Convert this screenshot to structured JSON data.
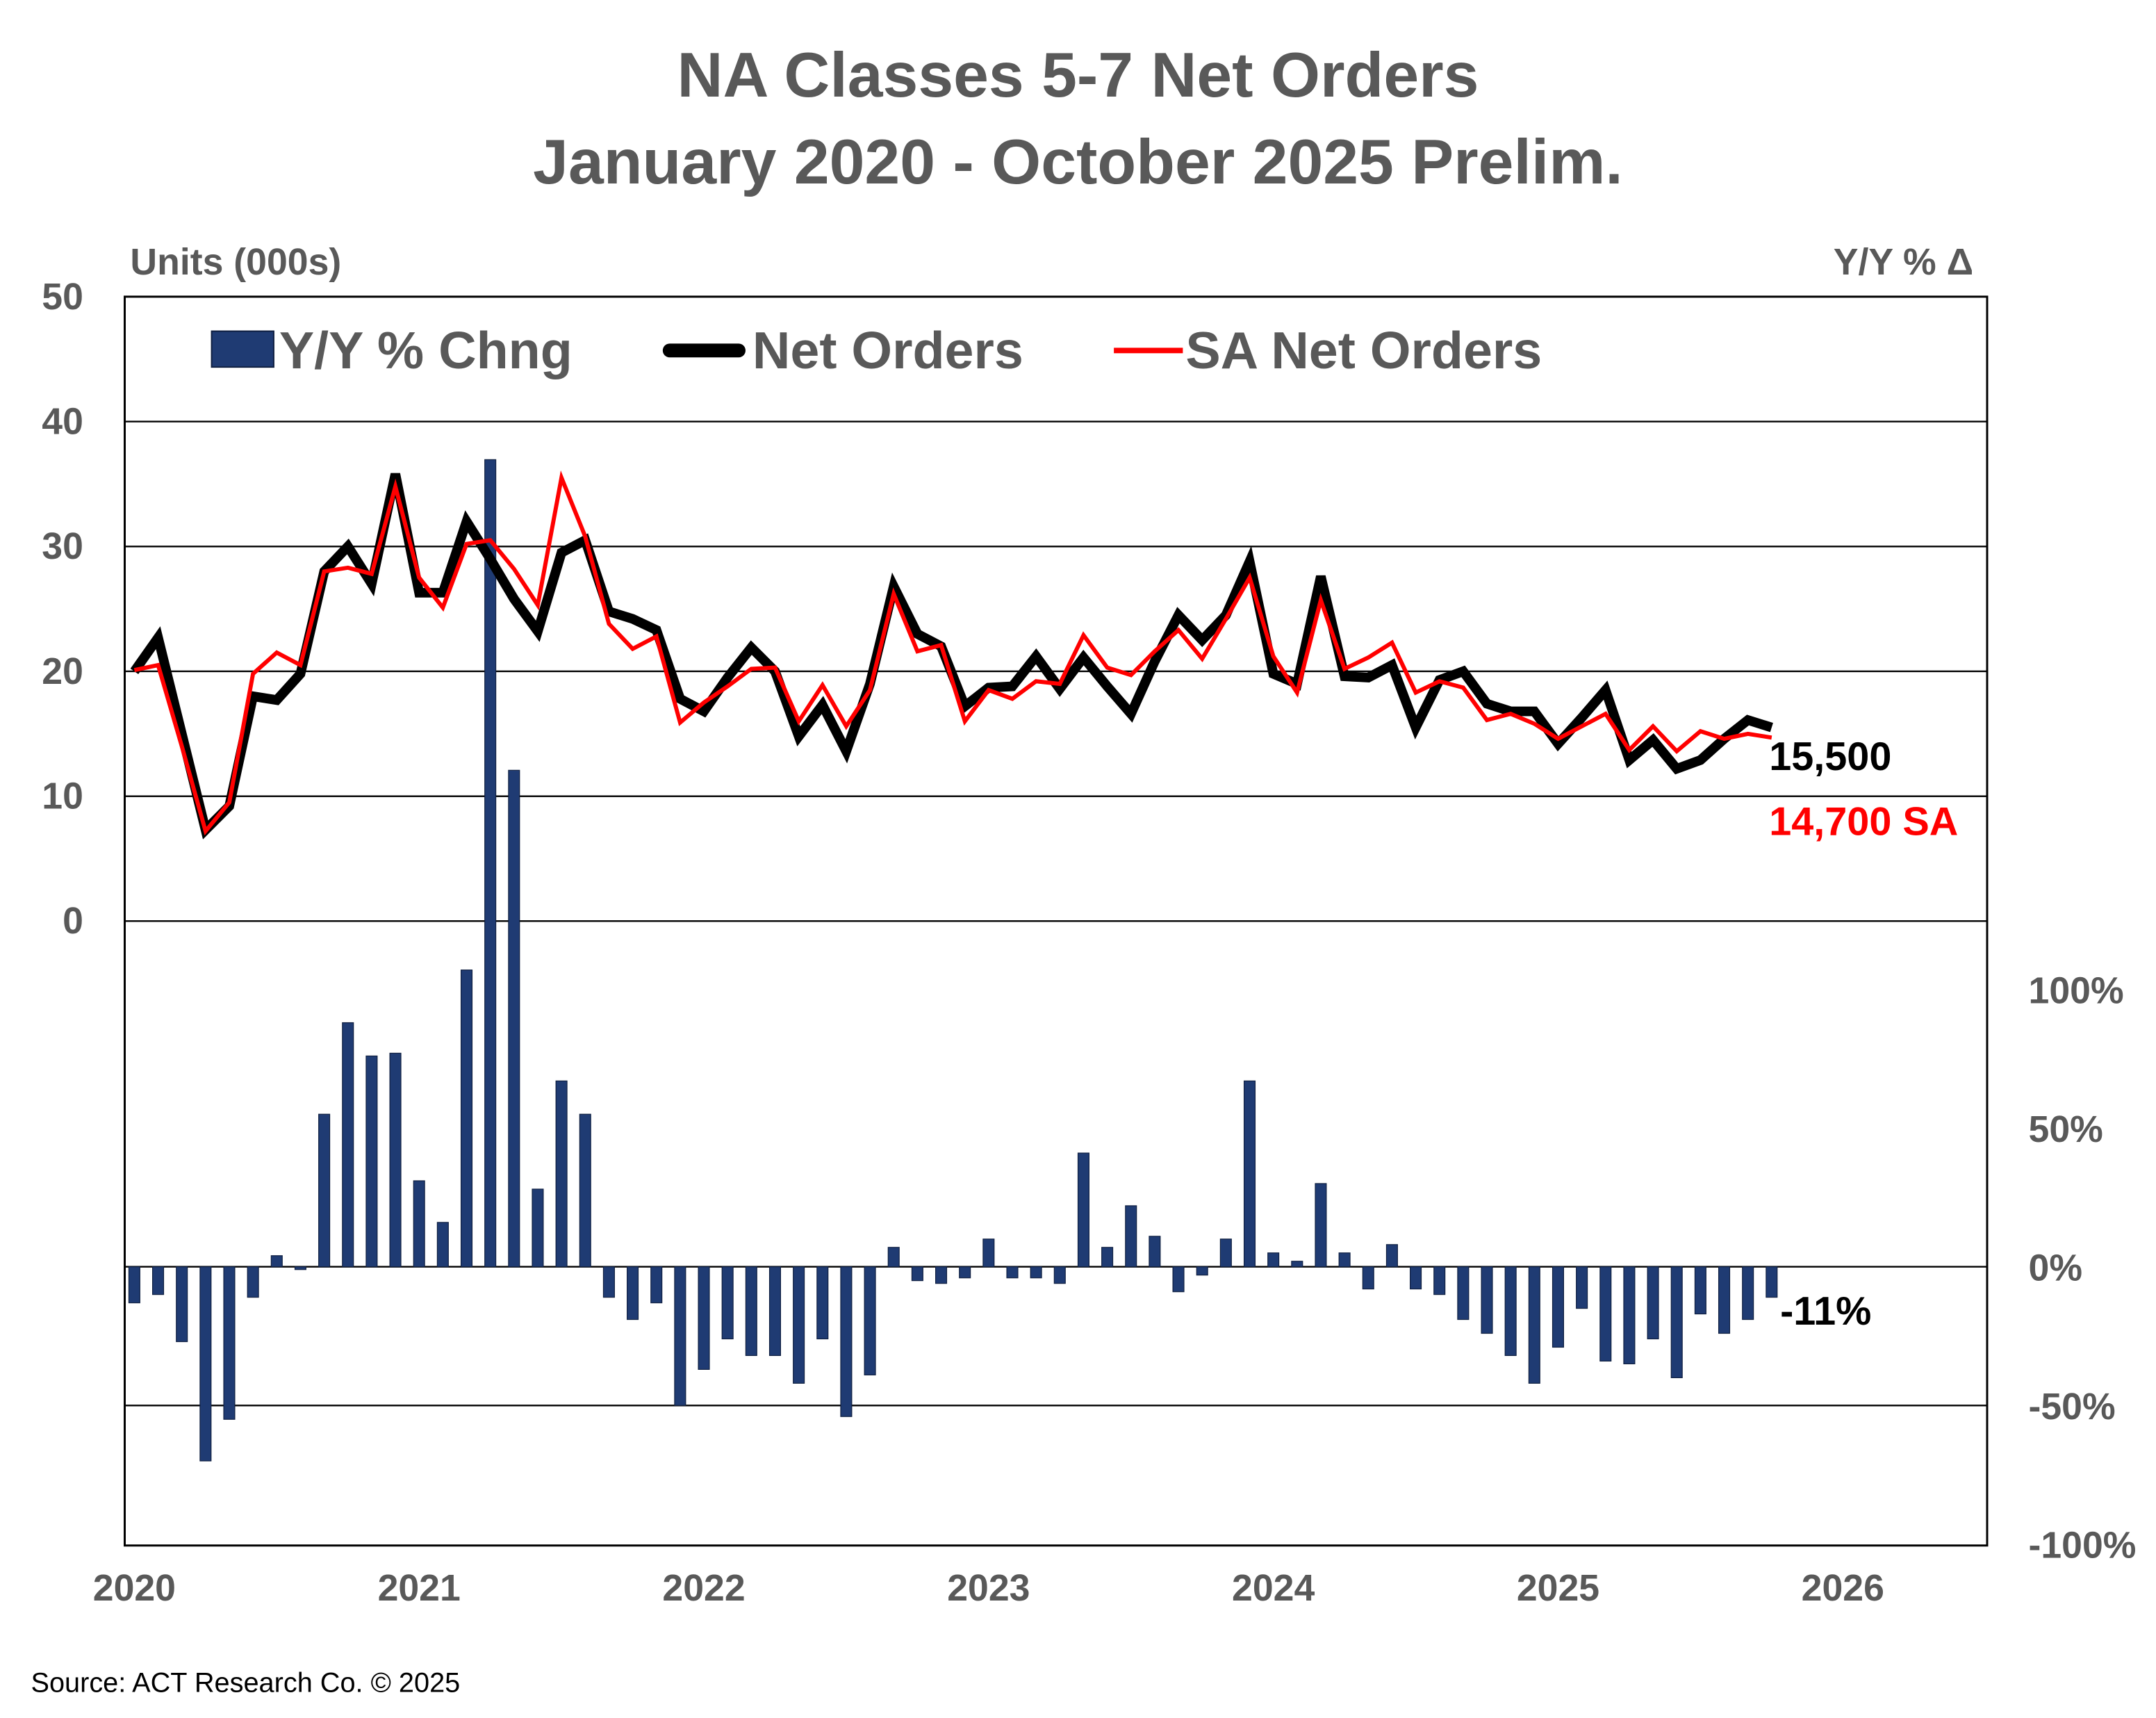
{
  "chart_data": {
    "type": "bar+line",
    "title": "NA Classes 5-7 Net Orders",
    "subtitle": "January 2020 - October 2025 Prelim.",
    "ylabel_left": "Units (000s)",
    "ylabel_right": "Y/Y % Δ",
    "source": "Source: ACT Research Co. © 2025",
    "ylim_left": [
      -50,
      50
    ],
    "yticks_left": [
      "0",
      "10",
      "20",
      "30",
      "40",
      "50"
    ],
    "yticks_left_values": [
      0,
      10,
      20,
      30,
      40,
      50
    ],
    "ylim_right": [
      -100,
      350
    ],
    "yticks_right": [
      "100%",
      "50%",
      "0%",
      "-50%",
      "-100%"
    ],
    "yticks_right_values": [
      100,
      50,
      0,
      -50,
      -100
    ],
    "xticks": [
      "2020",
      "2021",
      "2022",
      "2023",
      "2024",
      "2025",
      "2026"
    ],
    "x_start": "2020-01",
    "grid": true,
    "legend_placement": "top",
    "colors": {
      "bars": "#1F3B73",
      "net": "#000000",
      "sa": "#FF0000",
      "text": "#595959"
    },
    "series": [
      {
        "name": "Y/Y % Chng",
        "kind": "bar",
        "axis": "right",
        "values": [
          -13,
          -10,
          -27,
          -70,
          -55,
          -11,
          4,
          -1,
          55,
          88,
          76,
          77,
          31,
          16,
          107,
          291,
          179,
          28,
          67,
          55,
          -11,
          -19,
          -13,
          -50,
          -37,
          -26,
          -32,
          -32,
          -42,
          -26,
          -54,
          -39,
          7,
          -5,
          -6,
          -4,
          10,
          -4,
          -4,
          -6,
          41,
          7,
          22,
          11,
          -9,
          -3,
          10,
          67,
          5,
          2,
          30,
          5,
          -8,
          8,
          -8,
          -10,
          -19,
          -24,
          -32,
          -42,
          -29,
          -15,
          -34,
          -35,
          -26,
          -40,
          -17,
          -24,
          -19,
          -11
        ]
      },
      {
        "name": "Net Orders",
        "kind": "line",
        "axis": "left",
        "values": [
          20,
          22.7,
          15,
          7.3,
          9.2,
          18,
          17.7,
          19.8,
          28,
          30,
          27,
          35.8,
          26.3,
          26.3,
          32,
          29,
          25.8,
          23.2,
          29.5,
          30.5,
          24.8,
          24.2,
          23.3,
          17.8,
          16.8,
          19.5,
          21.9,
          20,
          14.8,
          17.3,
          13.6,
          19,
          26.8,
          23,
          22,
          17.2,
          18.7,
          18.8,
          21.2,
          18.6,
          21.1,
          18.8,
          16.6,
          20.8,
          24.5,
          22.5,
          24.5,
          28.8,
          19.8,
          19,
          27.6,
          19.6,
          19.5,
          20.5,
          15.5,
          19.3,
          20,
          17.4,
          16.8,
          16.8,
          14.2,
          16.3,
          18.5,
          12.9,
          14.5,
          12.2,
          12.9,
          14.6,
          16.1,
          15.5
        ]
      },
      {
        "name": "SA Net Orders",
        "kind": "line",
        "axis": "left",
        "values": [
          20.1,
          20.5,
          14,
          7.2,
          9.5,
          19.8,
          21.5,
          20.5,
          28,
          28.3,
          27.8,
          34.8,
          27.5,
          25.1,
          30.2,
          30.5,
          28.2,
          25.3,
          35.5,
          30.8,
          23.8,
          21.8,
          22.8,
          15.9,
          17.5,
          18.8,
          20.2,
          20.3,
          16,
          18.9,
          15.6,
          18.5,
          26.2,
          21.6,
          22.1,
          16,
          18.5,
          17.8,
          19.2,
          19,
          22.9,
          20.3,
          19.7,
          21.6,
          23.3,
          21,
          24.2,
          27.5,
          21.2,
          18.3,
          25.7,
          20.2,
          21.1,
          22.3,
          18.3,
          19.2,
          18.7,
          16.1,
          16.6,
          15.8,
          14.6,
          15.6,
          16.6,
          13.7,
          15.6,
          13.6,
          15.2,
          14.6,
          15,
          14.7
        ]
      }
    ],
    "annotations": {
      "net_last": "15,500",
      "sa_last": "14,700 SA",
      "yoy_last": "-11%"
    }
  }
}
